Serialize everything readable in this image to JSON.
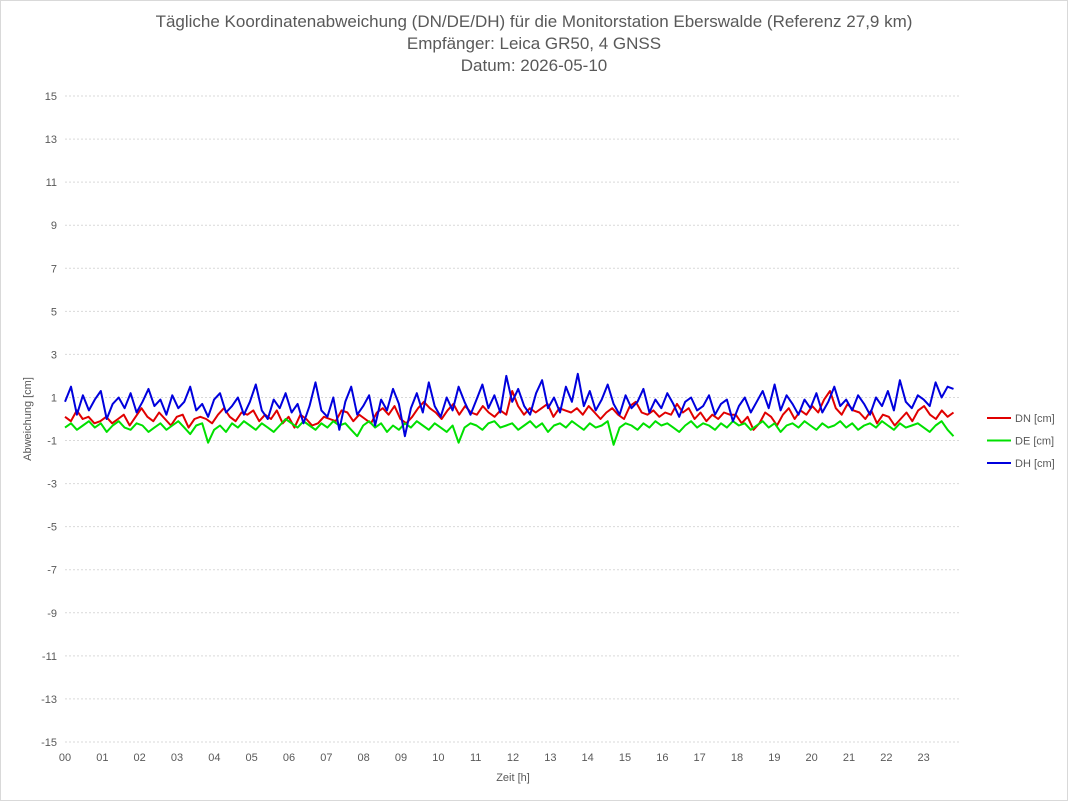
{
  "chart_data": {
    "type": "line",
    "title": "Tägliche Koordinatenabweichung (DN/DE/DH) für die Monitorstation Eberswalde (Referenz 27,9 km)",
    "subtitle": "Empfänger: Leica GR50, 4 GNSS",
    "date_line": "Datum: 2026-05-10",
    "xlabel": "Zeit [h]",
    "ylabel": "Abweichung [cm]",
    "xlim": [
      0,
      24
    ],
    "ylim": [
      -15,
      15
    ],
    "x_ticks": [
      "00",
      "01",
      "02",
      "03",
      "04",
      "05",
      "06",
      "07",
      "08",
      "09",
      "10",
      "11",
      "12",
      "13",
      "14",
      "15",
      "16",
      "17",
      "18",
      "19",
      "20",
      "21",
      "22",
      "23"
    ],
    "y_ticks": [
      15,
      13,
      11,
      9,
      7,
      5,
      3,
      1,
      -1,
      -3,
      -5,
      -7,
      -9,
      -11,
      -13,
      -15
    ],
    "grid": "horizontal dotted",
    "legend_position": "right",
    "series": [
      {
        "name": "DN [cm]",
        "color": "#e00000",
        "values": [
          0.1,
          -0.1,
          0.4,
          0.0,
          0.1,
          -0.2,
          -0.1,
          0.1,
          -0.2,
          0.0,
          0.2,
          -0.3,
          0.1,
          0.5,
          0.1,
          -0.1,
          0.3,
          0.0,
          -0.3,
          0.1,
          0.2,
          -0.4,
          0.0,
          0.1,
          0.0,
          -0.2,
          0.2,
          0.5,
          0.1,
          -0.1,
          0.3,
          0.2,
          0.4,
          -0.1,
          0.2,
          0.0,
          0.4,
          -0.2,
          0.1,
          -0.4,
          0.2,
          0.0,
          -0.3,
          -0.2,
          0.1,
          0.0,
          -0.1,
          0.4,
          0.3,
          -0.1,
          0.2,
          0.0,
          -0.2,
          0.3,
          0.5,
          0.2,
          0.6,
          0.0,
          -0.2,
          0.1,
          0.5,
          0.8,
          0.5,
          0.3,
          0.0,
          0.4,
          0.7,
          0.2,
          0.6,
          0.3,
          0.2,
          0.6,
          0.3,
          0.1,
          0.4,
          0.2,
          1.3,
          0.6,
          0.2,
          0.5,
          0.3,
          0.5,
          0.7,
          0.1,
          0.5,
          0.4,
          0.3,
          0.5,
          0.2,
          0.6,
          0.3,
          0.0,
          0.3,
          0.5,
          0.2,
          0.0,
          0.6,
          0.8,
          0.3,
          0.2,
          0.4,
          0.1,
          0.3,
          0.2,
          0.7,
          0.3,
          0.5,
          0.0,
          0.3,
          -0.1,
          0.2,
          0.0,
          0.3,
          0.2,
          0.2,
          -0.2,
          0.1,
          -0.5,
          -0.2,
          0.3,
          0.1,
          -0.3,
          0.2,
          0.5,
          0.0,
          0.4,
          0.2,
          0.6,
          0.3,
          0.9,
          1.3,
          0.5,
          0.2,
          0.7,
          0.4,
          0.3,
          0.0,
          0.4,
          -0.2,
          0.2,
          0.1,
          -0.3,
          0.0,
          0.3,
          -0.1,
          0.4,
          0.6,
          0.2,
          0.0,
          0.4,
          0.1,
          0.3
        ]
      },
      {
        "name": "DE [cm]",
        "color": "#00e000",
        "values": [
          -0.4,
          -0.2,
          -0.5,
          -0.3,
          -0.1,
          -0.4,
          -0.2,
          -0.6,
          -0.3,
          -0.1,
          -0.4,
          -0.5,
          -0.2,
          -0.3,
          -0.6,
          -0.4,
          -0.2,
          -0.5,
          -0.3,
          -0.1,
          -0.4,
          -0.7,
          -0.3,
          -0.2,
          -1.1,
          -0.5,
          -0.3,
          -0.6,
          -0.2,
          -0.4,
          -0.1,
          -0.3,
          -0.5,
          -0.2,
          -0.4,
          -0.6,
          -0.3,
          0.0,
          -0.2,
          -0.4,
          -0.1,
          -0.3,
          -0.5,
          -0.2,
          -0.4,
          -0.1,
          -0.3,
          -0.2,
          -0.5,
          -0.8,
          -0.3,
          -0.1,
          -0.4,
          -0.2,
          -0.6,
          -0.3,
          -0.5,
          -0.2,
          -0.4,
          -0.1,
          -0.3,
          -0.5,
          -0.2,
          -0.4,
          -0.6,
          -0.3,
          -1.1,
          -0.4,
          -0.2,
          -0.3,
          -0.5,
          -0.2,
          -0.1,
          -0.4,
          -0.3,
          -0.2,
          -0.5,
          -0.3,
          -0.1,
          -0.4,
          -0.2,
          -0.6,
          -0.3,
          -0.2,
          -0.4,
          -0.1,
          -0.3,
          -0.5,
          -0.2,
          -0.4,
          -0.3,
          -0.1,
          -1.2,
          -0.4,
          -0.2,
          -0.3,
          -0.5,
          -0.2,
          -0.4,
          -0.1,
          -0.3,
          -0.2,
          -0.4,
          -0.6,
          -0.3,
          -0.1,
          -0.4,
          -0.2,
          -0.3,
          -0.5,
          -0.2,
          -0.4,
          -0.1,
          -0.3,
          -0.2,
          -0.5,
          -0.3,
          -0.1,
          -0.4,
          -0.2,
          -0.6,
          -0.3,
          -0.2,
          -0.4,
          -0.1,
          -0.3,
          -0.5,
          -0.2,
          -0.4,
          -0.3,
          -0.1,
          -0.4,
          -0.2,
          -0.5,
          -0.3,
          -0.2,
          -0.4,
          -0.1,
          -0.3,
          -0.5,
          -0.2,
          -0.4,
          -0.3,
          -0.2,
          -0.4,
          -0.6,
          -0.3,
          -0.1,
          -0.5,
          -0.8
        ]
      },
      {
        "name": "DH [cm]",
        "color": "#0000dd",
        "values": [
          0.8,
          1.5,
          0.2,
          1.1,
          0.4,
          0.9,
          1.3,
          0.0,
          0.7,
          1.0,
          0.5,
          1.2,
          0.3,
          0.8,
          1.4,
          0.6,
          0.9,
          0.2,
          1.1,
          0.5,
          0.8,
          1.5,
          0.4,
          0.7,
          0.1,
          0.9,
          1.2,
          0.3,
          0.6,
          1.0,
          0.2,
          0.8,
          1.6,
          0.4,
          0.0,
          0.9,
          0.5,
          1.2,
          0.3,
          0.7,
          -0.2,
          0.6,
          1.7,
          0.4,
          0.1,
          1.0,
          -0.5,
          0.8,
          1.5,
          0.2,
          0.6,
          1.1,
          -0.3,
          0.9,
          0.4,
          1.4,
          0.7,
          -0.8,
          0.5,
          1.2,
          0.3,
          1.7,
          0.6,
          0.1,
          1.0,
          0.4,
          1.5,
          0.8,
          0.2,
          0.9,
          1.6,
          0.5,
          1.1,
          0.3,
          2.0,
          0.8,
          1.4,
          0.6,
          0.2,
          1.2,
          1.8,
          0.5,
          1.0,
          0.3,
          1.5,
          0.8,
          2.1,
          0.6,
          1.3,
          0.4,
          0.9,
          1.6,
          0.7,
          0.2,
          1.1,
          0.5,
          0.8,
          1.4,
          0.3,
          0.9,
          0.5,
          1.2,
          0.7,
          0.1,
          0.8,
          1.0,
          0.4,
          0.6,
          1.1,
          0.2,
          0.7,
          0.9,
          -0.1,
          0.6,
          1.0,
          0.3,
          0.8,
          1.3,
          0.5,
          1.6,
          0.4,
          1.1,
          0.7,
          0.2,
          0.9,
          0.5,
          1.2,
          0.3,
          0.8,
          1.5,
          0.6,
          0.9,
          0.4,
          1.1,
          0.7,
          0.2,
          1.0,
          0.6,
          1.3,
          0.4,
          1.8,
          0.8,
          0.5,
          1.1,
          0.9,
          0.6,
          1.7,
          1.0,
          1.5,
          1.4
        ]
      }
    ]
  }
}
